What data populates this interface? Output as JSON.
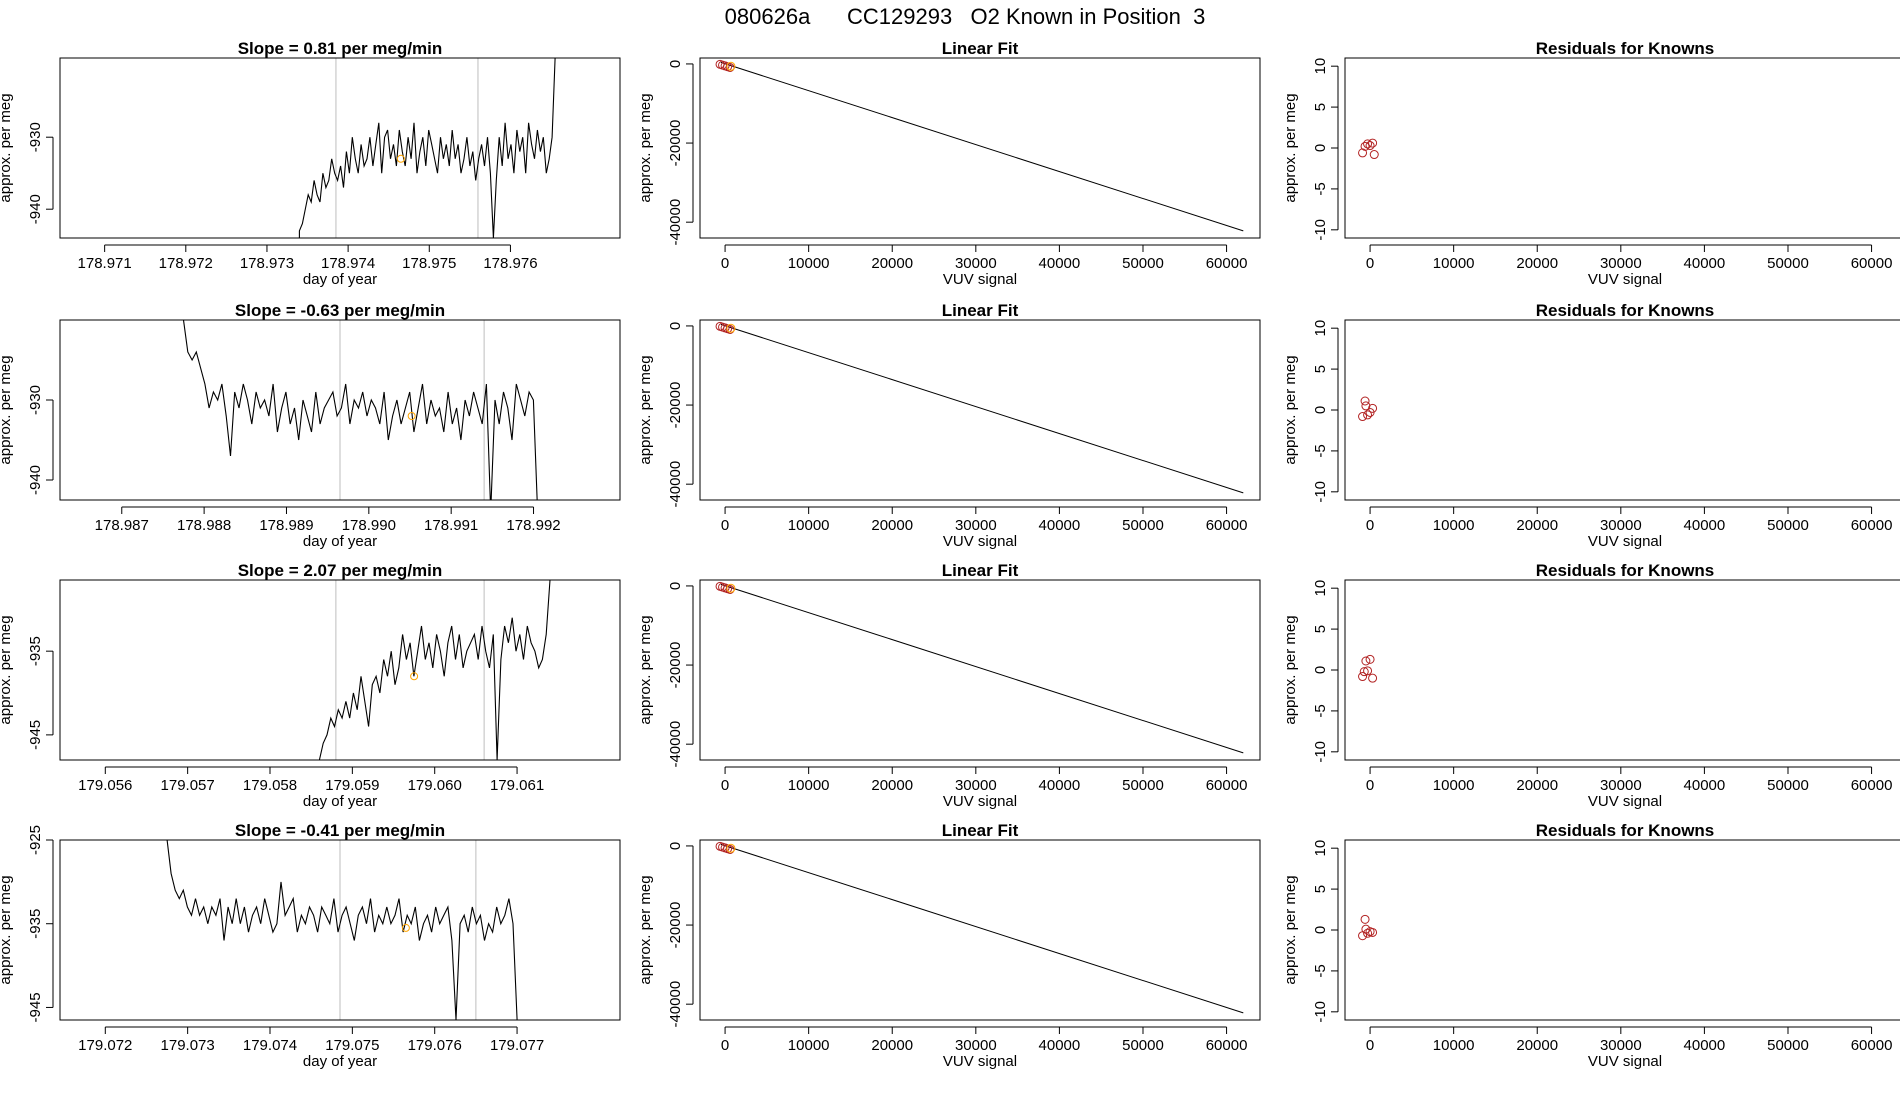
{
  "page_title": "080626a      CC129293   O2 Known in Position  3",
  "colors": {
    "series": "#000000",
    "vline": "#bebebe",
    "highlight": "#ffa500",
    "point": "#b22222",
    "box": "#000000"
  },
  "chart_data": [
    {
      "type": "line",
      "panel": "time-series",
      "row": 1,
      "title": "Slope =  0.81  per meg/min",
      "xlabel": "day of year",
      "ylabel": "approx. per meg",
      "xlim": [
        178.97045,
        178.97735
      ],
      "ylim": [
        -944,
        -919
      ],
      "xticks": [
        "178.971",
        "178.972",
        "178.973",
        "178.974",
        "178.975",
        "178.976"
      ],
      "xtick_values": [
        178.971,
        178.972,
        178.973,
        178.974,
        178.975,
        178.976
      ],
      "yticks": [
        "-930",
        "-940"
      ],
      "ytick_values": [
        -930,
        -940
      ],
      "vlines": [
        178.97385,
        178.9756
      ],
      "highlight_point": {
        "x": 178.97465,
        "y": -933
      },
      "line": {
        "x_start": 178.9734,
        "x_end": 178.97655,
        "y_start": -944,
        "values": [
          -943,
          -942,
          -940,
          -938,
          -939,
          -936,
          -938,
          -939,
          -935,
          -937,
          -936,
          -933,
          -935,
          -936,
          -934,
          -937,
          -932,
          -935,
          -930,
          -933,
          -935,
          -931,
          -934,
          -933,
          -930,
          -934,
          -931,
          -928,
          -935,
          -930,
          -929,
          -933,
          -931,
          -934,
          -929,
          -932,
          -934,
          -930,
          -933,
          -928,
          -935,
          -932,
          -930,
          -934,
          -929,
          -931,
          -933,
          -935,
          -930,
          -933,
          -931,
          -934,
          -929,
          -933,
          -931,
          -935,
          -933,
          -930,
          -934,
          -932,
          -936,
          -933,
          -931,
          -934,
          -930,
          -935,
          -944,
          -936,
          -930,
          -934,
          -928,
          -933,
          -931,
          -935,
          -929,
          -932,
          -930,
          -935,
          -928,
          -931,
          -933,
          -929,
          -932,
          -930,
          -935,
          -933,
          -930,
          -919
        ]
      }
    },
    {
      "type": "line",
      "panel": "time-series",
      "row": 2,
      "title": "Slope =  -0.63  per meg/min",
      "xlabel": "day of year",
      "ylabel": "approx. per meg",
      "xlim": [
        178.98625,
        178.99305
      ],
      "ylim": [
        -942.5,
        -920
      ],
      "xticks": [
        "178.987",
        "178.988",
        "178.989",
        "178.990",
        "178.991",
        "178.992"
      ],
      "xtick_values": [
        178.987,
        178.988,
        178.989,
        178.99,
        178.991,
        178.992
      ],
      "yticks": [
        "-930",
        "-940"
      ],
      "ytick_values": [
        -930,
        -940
      ],
      "vlines": [
        178.98965,
        178.9914
      ],
      "highlight_point": {
        "x": 178.99052,
        "y": -932
      },
      "line": {
        "x_start": 178.98775,
        "x_end": 178.99205,
        "y_start": -920,
        "values": [
          -920,
          -924,
          -925,
          -924,
          -926,
          -928,
          -931,
          -929,
          -930,
          -928,
          -932,
          -937,
          -929,
          -931,
          -928,
          -930,
          -933,
          -929,
          -931,
          -930,
          -932,
          -928,
          -934,
          -931,
          -929,
          -933,
          -931,
          -935,
          -930,
          -932,
          -934,
          -929,
          -933,
          -931,
          -930,
          -929,
          -932,
          -931,
          -928,
          -933,
          -930,
          -931,
          -929,
          -932,
          -930,
          -931,
          -933,
          -929,
          -935,
          -932,
          -930,
          -933,
          -931,
          -929,
          -934,
          -931,
          -928,
          -933,
          -930,
          -932,
          -931,
          -934,
          -929,
          -933,
          -931,
          -935,
          -930,
          -932,
          -929,
          -931,
          -933,
          -928,
          -944,
          -930,
          -933,
          -929,
          -931,
          -935,
          -928,
          -930,
          -932,
          -929,
          -930,
          -944
        ]
      }
    },
    {
      "type": "line",
      "panel": "time-series",
      "row": 3,
      "title": "Slope =  2.07  per meg/min",
      "xlabel": "day of year",
      "ylabel": "approx. per meg",
      "xlim": [
        179.05545,
        179.06225
      ],
      "ylim": [
        -948,
        -926.5
      ],
      "xticks": [
        "179.056",
        "179.057",
        "179.058",
        "179.059",
        "179.060",
        "179.061"
      ],
      "xtick_values": [
        179.056,
        179.057,
        179.058,
        179.059,
        179.06,
        179.061
      ],
      "yticks": [
        "-935",
        "-945"
      ],
      "ytick_values": [
        -935,
        -945
      ],
      "vlines": [
        179.0588,
        179.0606
      ],
      "highlight_point": {
        "x": 179.05975,
        "y": -938
      },
      "line": {
        "x_start": 179.0586,
        "x_end": 179.0614,
        "y_start": -948,
        "values": [
          -948,
          -946,
          -945,
          -943,
          -944,
          -942,
          -943,
          -941,
          -943,
          -940,
          -942,
          -938,
          -941,
          -944,
          -939,
          -938,
          -940,
          -936,
          -938,
          -935,
          -939,
          -937,
          -933,
          -936,
          -934,
          -938,
          -935,
          -932,
          -936,
          -934,
          -937,
          -933,
          -935,
          -938,
          -934,
          -932,
          -936,
          -933,
          -937,
          -935,
          -934,
          -933,
          -936,
          -932,
          -935,
          -937,
          -933,
          -948,
          -936,
          -932,
          -934,
          -931,
          -935,
          -933,
          -936,
          -932,
          -934,
          -935,
          -937,
          -936,
          -933,
          -926.5
        ]
      }
    },
    {
      "type": "line",
      "panel": "time-series",
      "row": 4,
      "title": "Slope =  -0.41  per meg/min",
      "xlabel": "day of year",
      "ylabel": "approx. per meg",
      "xlim": [
        179.07145,
        179.07825
      ],
      "ylim": [
        -946.5,
        -925
      ],
      "xticks": [
        "179.072",
        "179.073",
        "179.074",
        "179.075",
        "179.076",
        "179.077"
      ],
      "xtick_values": [
        179.072,
        179.073,
        179.074,
        179.075,
        179.076,
        179.077
      ],
      "yticks": [
        "-925",
        "-935",
        "-945"
      ],
      "ytick_values": [
        -925,
        -935,
        -945
      ],
      "vlines": [
        179.07485,
        179.0765
      ],
      "highlight_point": {
        "x": 179.07565,
        "y": -935.5
      },
      "line": {
        "x_start": 179.07275,
        "x_end": 179.077,
        "y_start": -925,
        "values": [
          -925,
          -929,
          -931,
          -932,
          -931,
          -933,
          -934,
          -932,
          -934,
          -933,
          -935,
          -933,
          -934,
          -932,
          -937,
          -933,
          -935,
          -932,
          -935,
          -933,
          -936,
          -934,
          -933,
          -935,
          -932,
          -934,
          -936,
          -935,
          -930,
          -934,
          -933,
          -932,
          -936,
          -934,
          -935,
          -933,
          -934,
          -936,
          -933,
          -934,
          -935,
          -932,
          -936,
          -934,
          -933,
          -935,
          -937,
          -934,
          -933,
          -935,
          -932,
          -936,
          -934,
          -935,
          -933,
          -935,
          -934,
          -932,
          -936,
          -934,
          -935,
          -933,
          -937,
          -935,
          -934,
          -936,
          -933,
          -935,
          -934,
          -933,
          -937,
          -946.5,
          -935,
          -934,
          -936,
          -933,
          -935,
          -934,
          -937,
          -935,
          -936,
          -933,
          -935,
          -934,
          -932,
          -935,
          -946.5
        ]
      }
    },
    {
      "type": "scatter",
      "panel": "linear-fit",
      "row": 1,
      "title": "Linear Fit",
      "xlabel": "VUV signal",
      "ylabel": "approx. per meg",
      "xlim": [
        -3000,
        64000
      ],
      "ylim": [
        -44000,
        1500
      ],
      "xticks": [
        "0",
        "10000",
        "20000",
        "30000",
        "40000",
        "50000",
        "60000"
      ],
      "xtick_values": [
        0,
        10000,
        20000,
        30000,
        40000,
        50000,
        60000
      ],
      "yticks": [
        "0",
        "-20000",
        "-40000"
      ],
      "ytick_values": [
        0,
        -20000,
        -40000
      ],
      "fit_line": {
        "x": [
          -500,
          62000
        ],
        "y": [
          400,
          -42200
        ]
      },
      "points": {
        "x": [
          -600,
          -300,
          0,
          300,
          600
        ],
        "y": [
          -100,
          -300,
          -500,
          -700,
          -900
        ]
      },
      "highlight_point": {
        "x": 700,
        "y": -600
      }
    },
    {
      "type": "scatter",
      "panel": "linear-fit",
      "row": 2,
      "title": "Linear Fit",
      "xlabel": "VUV signal",
      "ylabel": "approx. per meg",
      "xlim": [
        -3000,
        64000
      ],
      "ylim": [
        -44000,
        1500
      ],
      "xticks": [
        "0",
        "10000",
        "20000",
        "30000",
        "40000",
        "50000",
        "60000"
      ],
      "xtick_values": [
        0,
        10000,
        20000,
        30000,
        40000,
        50000,
        60000
      ],
      "yticks": [
        "0",
        "-20000",
        "-40000"
      ],
      "ytick_values": [
        0,
        -20000,
        -40000
      ],
      "fit_line": {
        "x": [
          -500,
          62000
        ],
        "y": [
          400,
          -42200
        ]
      },
      "points": {
        "x": [
          -600,
          -300,
          0,
          300,
          600
        ],
        "y": [
          -100,
          -300,
          -500,
          -700,
          -900
        ]
      },
      "highlight_point": {
        "x": 700,
        "y": -600
      }
    },
    {
      "type": "scatter",
      "panel": "linear-fit",
      "row": 3,
      "title": "Linear Fit",
      "xlabel": "VUV signal",
      "ylabel": "approx. per meg",
      "xlim": [
        -3000,
        64000
      ],
      "ylim": [
        -44000,
        1500
      ],
      "xticks": [
        "0",
        "10000",
        "20000",
        "30000",
        "40000",
        "50000",
        "60000"
      ],
      "xtick_values": [
        0,
        10000,
        20000,
        30000,
        40000,
        50000,
        60000
      ],
      "yticks": [
        "0",
        "-20000",
        "-40000"
      ],
      "ytick_values": [
        0,
        -20000,
        -40000
      ],
      "fit_line": {
        "x": [
          -500,
          62000
        ],
        "y": [
          400,
          -42200
        ]
      },
      "points": {
        "x": [
          -600,
          -300,
          0,
          300,
          600
        ],
        "y": [
          -100,
          -300,
          -500,
          -700,
          -900
        ]
      },
      "highlight_point": {
        "x": 700,
        "y": -600
      }
    },
    {
      "type": "scatter",
      "panel": "linear-fit",
      "row": 4,
      "title": "Linear Fit",
      "xlabel": "VUV signal",
      "ylabel": "approx. per meg",
      "xlim": [
        -3000,
        64000
      ],
      "ylim": [
        -44000,
        1500
      ],
      "xticks": [
        "0",
        "10000",
        "20000",
        "30000",
        "40000",
        "50000",
        "60000"
      ],
      "xtick_values": [
        0,
        10000,
        20000,
        30000,
        40000,
        50000,
        60000
      ],
      "yticks": [
        "0",
        "-20000",
        "-40000"
      ],
      "ytick_values": [
        0,
        -20000,
        -40000
      ],
      "fit_line": {
        "x": [
          -500,
          62000
        ],
        "y": [
          400,
          -42200
        ]
      },
      "points": {
        "x": [
          -600,
          -300,
          0,
          300,
          600
        ],
        "y": [
          -100,
          -300,
          -500,
          -700,
          -900
        ]
      },
      "highlight_point": {
        "x": 700,
        "y": -600
      }
    },
    {
      "type": "scatter",
      "panel": "residuals",
      "row": 1,
      "title": "Residuals for Knowns",
      "xlabel": "VUV signal",
      "ylabel": "approx. per meg",
      "xlim": [
        -3000,
        64000
      ],
      "ylim": [
        -11,
        11
      ],
      "xticks": [
        "0",
        "10000",
        "20000",
        "30000",
        "40000",
        "50000",
        "60000"
      ],
      "xtick_values": [
        0,
        10000,
        20000,
        30000,
        40000,
        50000,
        60000
      ],
      "yticks": [
        "10",
        "5",
        "0",
        "-5",
        "-10"
      ],
      "ytick_values": [
        10,
        5,
        0,
        -5,
        -10
      ],
      "points": {
        "x": [
          -900,
          -600,
          -300,
          0,
          300,
          500
        ],
        "y": [
          -0.6,
          0.2,
          0.5,
          0.3,
          0.6,
          -0.8
        ]
      }
    },
    {
      "type": "scatter",
      "panel": "residuals",
      "row": 2,
      "title": "Residuals for Knowns",
      "xlabel": "VUV signal",
      "ylabel": "approx. per meg",
      "xlim": [
        -3000,
        64000
      ],
      "ylim": [
        -11,
        11
      ],
      "xticks": [
        "0",
        "10000",
        "20000",
        "30000",
        "40000",
        "50000",
        "60000"
      ],
      "xtick_values": [
        0,
        10000,
        20000,
        30000,
        40000,
        50000,
        60000
      ],
      "yticks": [
        "10",
        "5",
        "0",
        "-5",
        "-10"
      ],
      "ytick_values": [
        10,
        5,
        0,
        -5,
        -10
      ],
      "points": {
        "x": [
          -900,
          -600,
          -500,
          -300,
          0,
          300
        ],
        "y": [
          -0.8,
          1.1,
          0.5,
          -0.6,
          -0.3,
          0.2
        ]
      }
    },
    {
      "type": "scatter",
      "panel": "residuals",
      "row": 3,
      "title": "Residuals for Knowns",
      "xlabel": "VUV signal",
      "ylabel": "approx. per meg",
      "xlim": [
        -3000,
        64000
      ],
      "ylim": [
        -11,
        11
      ],
      "xticks": [
        "0",
        "10000",
        "20000",
        "30000",
        "40000",
        "50000",
        "60000"
      ],
      "xtick_values": [
        0,
        10000,
        20000,
        30000,
        40000,
        50000,
        60000
      ],
      "yticks": [
        "10",
        "5",
        "0",
        "-5",
        "-10"
      ],
      "ytick_values": [
        10,
        5,
        0,
        -5,
        -10
      ],
      "points": {
        "x": [
          -900,
          -700,
          -500,
          -300,
          0,
          300
        ],
        "y": [
          -0.8,
          -0.2,
          1.1,
          -0.1,
          1.3,
          -1.0
        ]
      }
    },
    {
      "type": "scatter",
      "panel": "residuals",
      "row": 4,
      "title": "Residuals for Knowns",
      "xlabel": "VUV signal",
      "ylabel": "approx. per meg",
      "xlim": [
        -3000,
        64000
      ],
      "ylim": [
        -11,
        11
      ],
      "xticks": [
        "0",
        "10000",
        "20000",
        "30000",
        "40000",
        "50000",
        "60000"
      ],
      "xtick_values": [
        0,
        10000,
        20000,
        30000,
        40000,
        50000,
        60000
      ],
      "yticks": [
        "10",
        "5",
        "0",
        "-5",
        "-10"
      ],
      "ytick_values": [
        10,
        5,
        0,
        -5,
        -10
      ],
      "points": {
        "x": [
          -900,
          -600,
          -500,
          -300,
          0,
          300
        ],
        "y": [
          -0.7,
          1.3,
          0.1,
          -0.4,
          -0.2,
          -0.3
        ]
      }
    }
  ]
}
